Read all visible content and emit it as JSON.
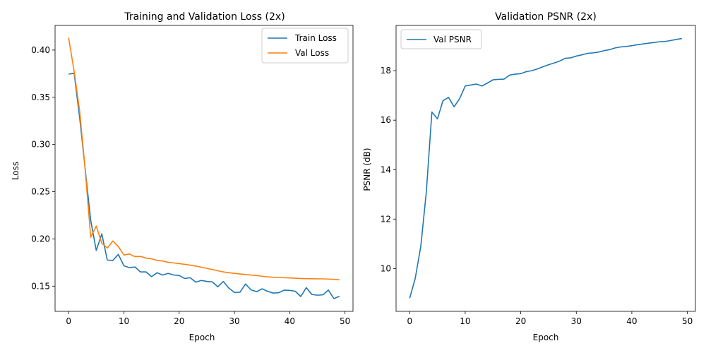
{
  "chart_data": [
    {
      "type": "line",
      "title": "Training and Validation Loss (2x)",
      "xlabel": "Epoch",
      "ylabel": "Loss",
      "xlim": [
        -2.45,
        51.45
      ],
      "ylim": [
        0.1233,
        0.4261
      ],
      "xticks": [
        0,
        10,
        20,
        30,
        40,
        50
      ],
      "yticks": [
        0.15,
        0.2,
        0.25,
        0.3,
        0.35,
        0.4
      ],
      "ytick_labels": [
        "0.15",
        "0.20",
        "0.25",
        "0.30",
        "0.35",
        "0.40"
      ],
      "grid": false,
      "legend_position": "top-right",
      "series": [
        {
          "name": "Train Loss",
          "color": "#1f77b4",
          "x": [
            0,
            1,
            2,
            3,
            4,
            5,
            6,
            7,
            8,
            9,
            10,
            11,
            12,
            13,
            14,
            15,
            16,
            17,
            18,
            19,
            20,
            21,
            22,
            23,
            24,
            25,
            26,
            27,
            28,
            29,
            30,
            31,
            32,
            33,
            34,
            35,
            36,
            37,
            38,
            39,
            40,
            41,
            42,
            43,
            44,
            45,
            46,
            47,
            48,
            49
          ],
          "values": [
            0.3745,
            0.3754,
            0.3283,
            0.2738,
            0.2196,
            0.1878,
            0.2054,
            0.1776,
            0.1773,
            0.1836,
            0.1716,
            0.1696,
            0.1703,
            0.165,
            0.1651,
            0.16,
            0.1642,
            0.1617,
            0.1635,
            0.1618,
            0.1613,
            0.1581,
            0.1589,
            0.1542,
            0.156,
            0.155,
            0.1545,
            0.1493,
            0.1549,
            0.1479,
            0.1433,
            0.1435,
            0.1522,
            0.1461,
            0.1441,
            0.1472,
            0.1445,
            0.1427,
            0.143,
            0.1458,
            0.1455,
            0.1446,
            0.139,
            0.1484,
            0.1412,
            0.1404,
            0.1408,
            0.1458,
            0.1368,
            0.1393
          ]
        },
        {
          "name": "Val Loss",
          "color": "#ff7f0e",
          "x": [
            0,
            1,
            2,
            3,
            4,
            5,
            6,
            7,
            8,
            9,
            10,
            11,
            12,
            13,
            14,
            15,
            16,
            17,
            18,
            19,
            20,
            21,
            22,
            23,
            24,
            25,
            26,
            27,
            28,
            29,
            30,
            31,
            32,
            33,
            34,
            35,
            36,
            37,
            38,
            39,
            40,
            41,
            42,
            43,
            44,
            45,
            46,
            47,
            48,
            49
          ],
          "values": [
            0.4131,
            0.3775,
            0.3352,
            0.2735,
            0.2018,
            0.2136,
            0.1955,
            0.1903,
            0.1978,
            0.1919,
            0.183,
            0.184,
            0.1812,
            0.1815,
            0.1797,
            0.1789,
            0.1773,
            0.1767,
            0.1752,
            0.1746,
            0.1738,
            0.1731,
            0.1722,
            0.1713,
            0.1701,
            0.1688,
            0.1676,
            0.1663,
            0.165,
            0.1642,
            0.1635,
            0.1629,
            0.1623,
            0.1617,
            0.1612,
            0.1605,
            0.1599,
            0.1594,
            0.1591,
            0.1589,
            0.1587,
            0.1584,
            0.1581,
            0.1579,
            0.1578,
            0.1577,
            0.1577,
            0.1575,
            0.1572,
            0.1567
          ]
        }
      ]
    },
    {
      "type": "line",
      "title": "Validation PSNR (2x)",
      "xlabel": "Epoch",
      "ylabel": "PSNR (dB)",
      "xlim": [
        -2.45,
        51.45
      ],
      "ylim": [
        8.27,
        19.83
      ],
      "xticks": [
        0,
        10,
        20,
        30,
        40,
        50
      ],
      "yticks": [
        10,
        12,
        14,
        16,
        18
      ],
      "ytick_labels": [
        "10",
        "12",
        "14",
        "16",
        "18"
      ],
      "grid": false,
      "legend_position": "top-left",
      "series": [
        {
          "name": "Val PSNR",
          "color": "#1f77b4",
          "x": [
            0,
            1,
            2,
            3,
            4,
            5,
            6,
            7,
            8,
            9,
            10,
            11,
            12,
            13,
            14,
            15,
            16,
            17,
            18,
            19,
            20,
            21,
            22,
            23,
            24,
            25,
            26,
            27,
            28,
            29,
            30,
            31,
            32,
            33,
            34,
            35,
            36,
            37,
            38,
            39,
            40,
            41,
            42,
            43,
            44,
            45,
            46,
            47,
            48,
            49
          ],
          "values": [
            8.8,
            9.6,
            10.9,
            13.1,
            16.33,
            16.05,
            16.79,
            16.92,
            16.54,
            16.87,
            17.38,
            17.42,
            17.46,
            17.38,
            17.5,
            17.63,
            17.65,
            17.66,
            17.82,
            17.86,
            17.88,
            17.96,
            18.0,
            18.07,
            18.16,
            18.24,
            18.31,
            18.39,
            18.5,
            18.52,
            18.59,
            18.64,
            18.7,
            18.72,
            18.75,
            18.81,
            18.85,
            18.92,
            18.96,
            18.98,
            19.01,
            19.05,
            19.08,
            19.11,
            19.14,
            19.17,
            19.18,
            19.22,
            19.26,
            19.3
          ]
        }
      ]
    }
  ]
}
